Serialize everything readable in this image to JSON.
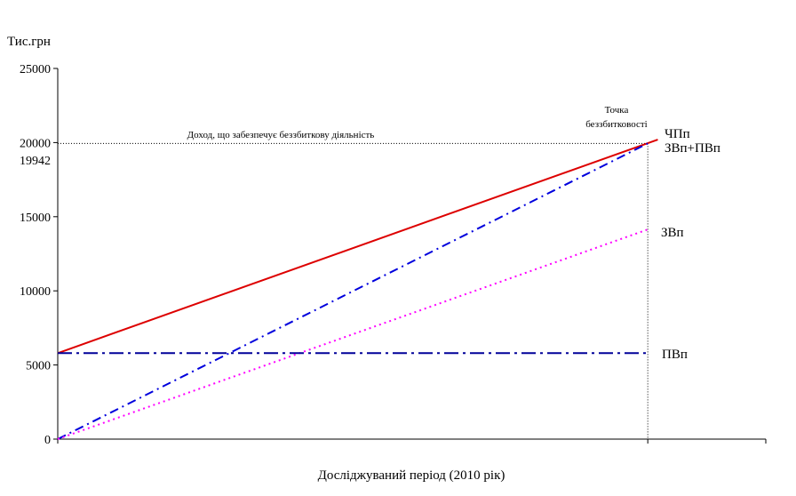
{
  "chart_data": {
    "type": "line",
    "title": "",
    "ylabel": "Тис.грн",
    "xlabel": "Досліджуваний період (2010 рік)",
    "ylim": [
      0,
      25000
    ],
    "yticks": [
      "25000",
      "20000",
      "15000",
      "10000",
      "5000",
      "0"
    ],
    "ytick_values": [
      25000,
      20000,
      15000,
      10000,
      5000,
      0
    ],
    "break_even_value": 19942,
    "break_even_label": "19942",
    "break_even_income_text": "Доход, що забезпечує беззбиткову діяльність",
    "break_even_point_text": [
      "Точка",
      "беззбитковості"
    ],
    "x_domain": [
      0,
      1.2
    ],
    "break_even_x": 1,
    "series": [
      {
        "name": "ЧПп",
        "color": "#dd0000",
        "dash": "solid",
        "x": [
          0,
          1.017
        ],
        "values": [
          5800,
          20200
        ]
      },
      {
        "name": "ЗВп+ПВп",
        "color": "#0000dd",
        "dash": "dashdot",
        "x": [
          0,
          1
        ],
        "values": [
          0,
          19942
        ]
      },
      {
        "name": "ЗВп",
        "color": "#ff00ff",
        "dash": "dot",
        "x": [
          0,
          1
        ],
        "values": [
          0,
          14142
        ]
      },
      {
        "name": "ПВп",
        "color": "#000099",
        "dash": "longdashdot",
        "x": [
          0,
          1
        ],
        "values": [
          5800,
          5800
        ]
      }
    ],
    "grid": false,
    "legend": "inline-right"
  }
}
